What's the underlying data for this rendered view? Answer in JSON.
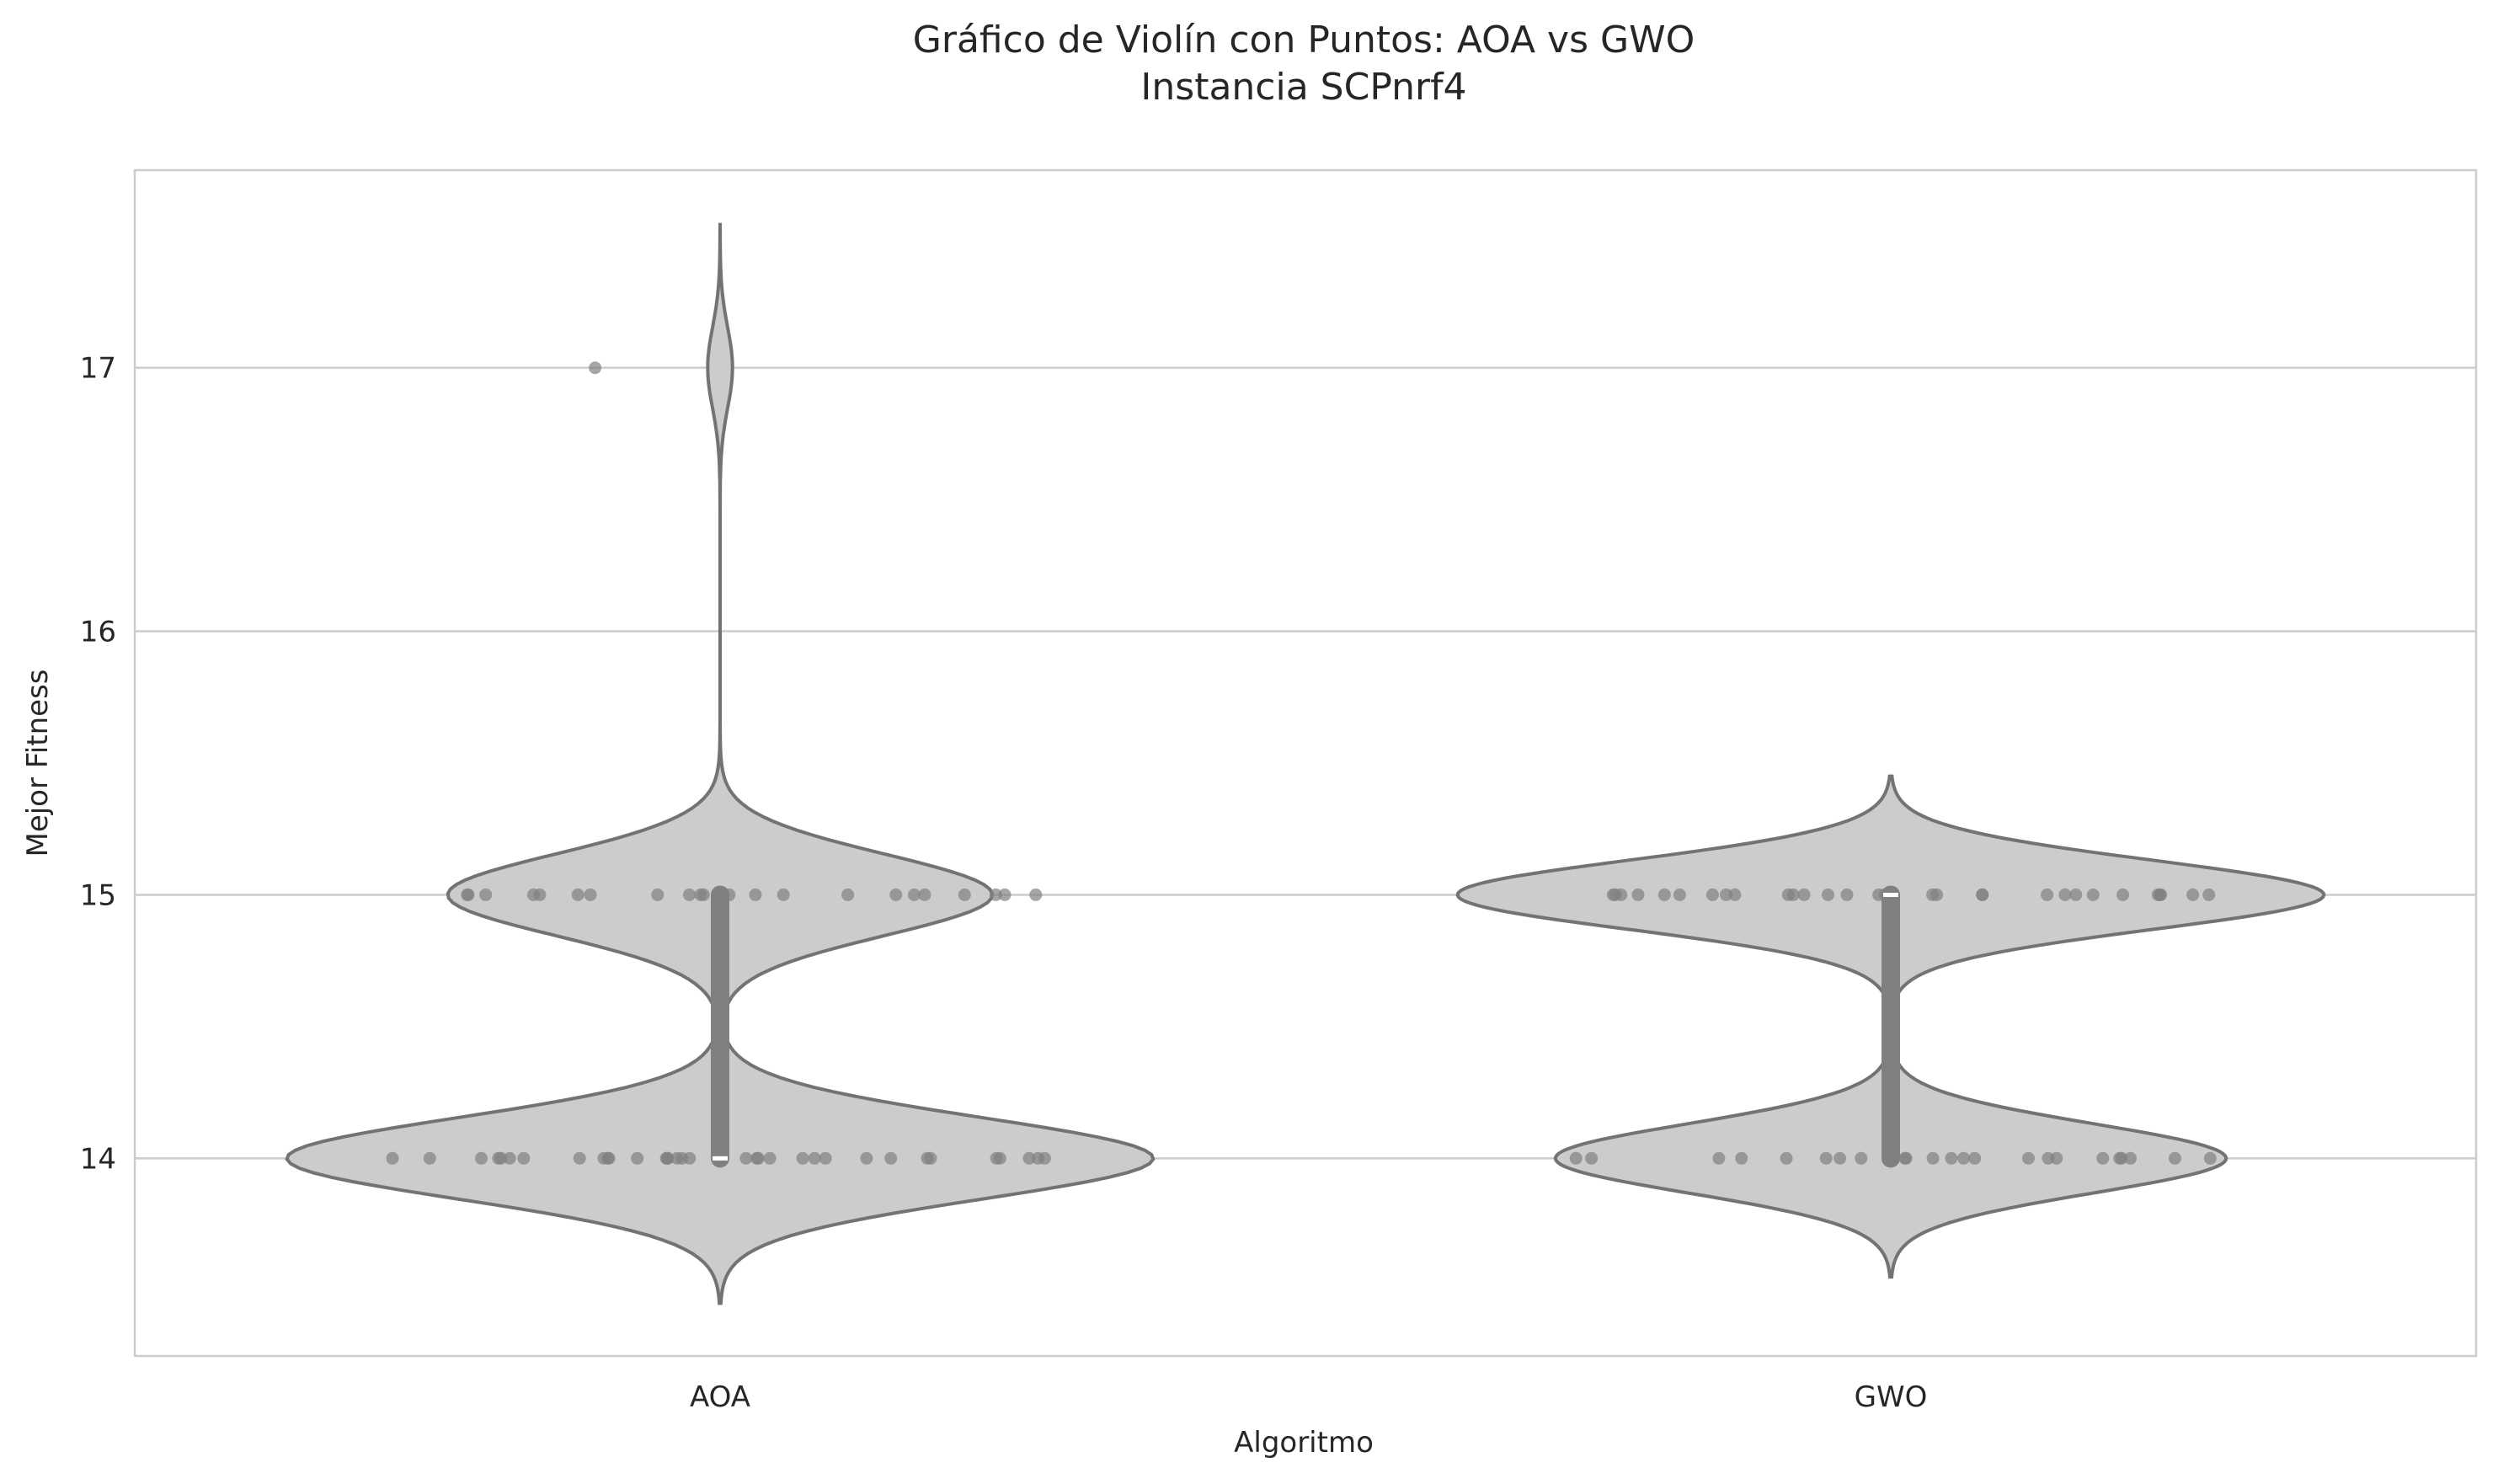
{
  "chart_data": {
    "type": "violin",
    "title": "Gráfico de Violín con Puntos: AOA vs GWO",
    "subtitle": "Instancia SCPnrf4",
    "xlabel": "Algoritmo",
    "ylabel": "Mejor Fitness",
    "categories": [
      "AOA",
      "GWO"
    ],
    "ylim": [
      13.25,
      17.75
    ],
    "yticks": [
      14,
      15,
      16,
      17
    ],
    "grid": "horizontal",
    "colors": {
      "violin_fill": "#cccccc",
      "violin_edge": "#737373",
      "points": "#808080",
      "inner_box": "#808080",
      "median": "#ffffff",
      "grid": "#cccccc",
      "frame": "#cccccc"
    },
    "series": [
      {
        "values": [
          14,
          14,
          14,
          14,
          14,
          14,
          14,
          14,
          14,
          14,
          14,
          14,
          14,
          14,
          14,
          14,
          14,
          14,
          14,
          14,
          14,
          14,
          14,
          14,
          14,
          14,
          14,
          14,
          14,
          14,
          14,
          14,
          14,
          14,
          14,
          15,
          15,
          15,
          15,
          15,
          15,
          15,
          15,
          15,
          15,
          15,
          15,
          15,
          15,
          15,
          15,
          15,
          15,
          15,
          15,
          15,
          15,
          17
        ],
        "median": 14,
        "q1": 14,
        "q3": 15,
        "range": [
          13.45,
          17.55
        ]
      },
      {
        "values": [
          14,
          14,
          14,
          14,
          14,
          14,
          14,
          14,
          14,
          14,
          14,
          14,
          14,
          14,
          14,
          14,
          14,
          14,
          14,
          14,
          14,
          14,
          14,
          14,
          15,
          15,
          15,
          15,
          15,
          15,
          15,
          15,
          15,
          15,
          15,
          15,
          15,
          15,
          15,
          15,
          15,
          15,
          15,
          15,
          15,
          15,
          15,
          15,
          15,
          15,
          15,
          15,
          15,
          15,
          15
        ],
        "median": 15,
        "q1": 14,
        "q3": 15,
        "range": [
          13.55,
          15.45
        ]
      }
    ]
  }
}
